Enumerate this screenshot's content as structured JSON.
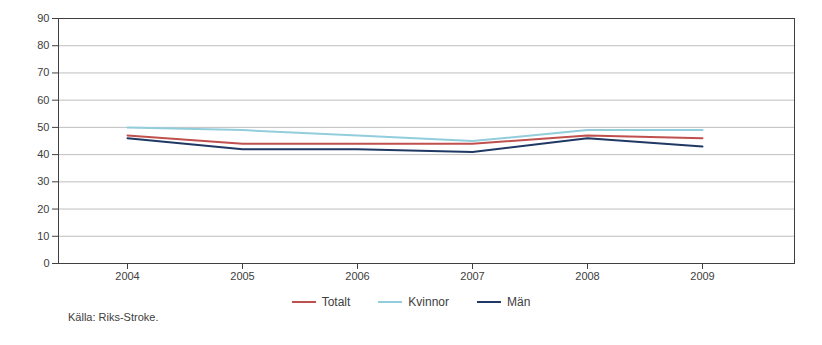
{
  "chart_data": {
    "type": "line",
    "x": [
      2004,
      2005,
      2006,
      2007,
      2008,
      2009
    ],
    "series": [
      {
        "name": "Totalt",
        "color": "#c0504d",
        "values": [
          47,
          44,
          44,
          44,
          47,
          46
        ]
      },
      {
        "name": "Kvinnor",
        "color": "#92cddc",
        "values": [
          50,
          49,
          47,
          45,
          49,
          49
        ]
      },
      {
        "name": "Män",
        "color": "#1f3864",
        "values": [
          46,
          42,
          42,
          41,
          46,
          43
        ]
      }
    ],
    "xlim": [
      2003.4,
      2009.8
    ],
    "xticks": [
      2004,
      2005,
      2006,
      2007,
      2008,
      2009
    ],
    "ylim": [
      0,
      90
    ],
    "yticks": [
      0,
      10,
      20,
      30,
      40,
      50,
      60,
      70,
      80,
      90
    ],
    "grid": true,
    "legend": "bottom",
    "caption": "Källa: Riks-Stroke."
  }
}
